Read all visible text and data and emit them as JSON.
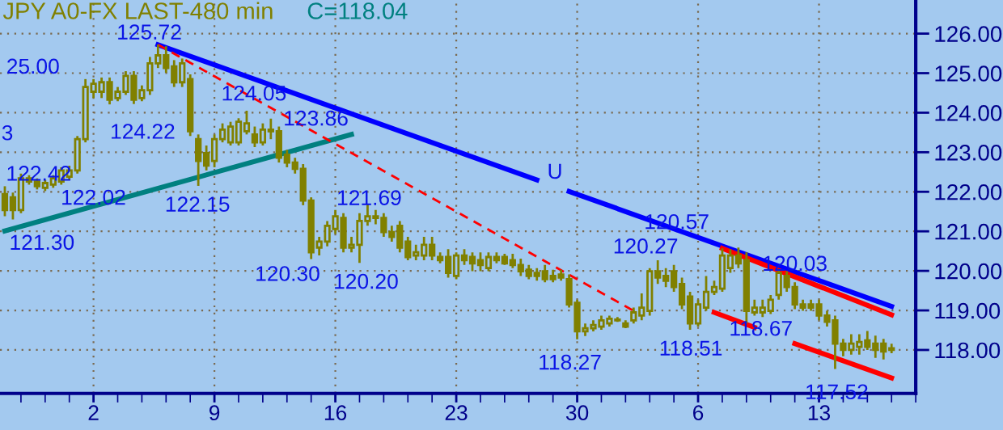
{
  "chart_data": {
    "type": "candlestick",
    "title": "JPY A0-FX LAST-480 min",
    "subtitle": "C=118.04",
    "color": "#808000",
    "categories": [
      null,
      null,
      null,
      null,
      null,
      null,
      null,
      null,
      null,
      null,
      null,
      "2",
      null,
      null,
      null,
      null,
      null,
      null,
      null,
      null,
      null,
      null,
      null,
      null,
      null,
      null,
      "9",
      null,
      null,
      null,
      null,
      null,
      null,
      null,
      null,
      null,
      null,
      null,
      null,
      null,
      null,
      "16",
      null,
      null,
      null,
      null,
      null,
      null,
      null,
      null,
      null,
      null,
      null,
      null,
      null,
      null,
      "23",
      null,
      null,
      null,
      null,
      null,
      null,
      null,
      null,
      null,
      null,
      null,
      null,
      null,
      null,
      "30",
      null,
      null,
      null,
      null,
      null,
      null,
      null,
      null,
      null,
      null,
      null,
      null,
      null,
      null,
      "6",
      null,
      null,
      null,
      null,
      null,
      null,
      null,
      null,
      null,
      null,
      null,
      null,
      null,
      null,
      "13",
      null,
      null,
      null,
      null,
      null,
      null,
      null,
      null,
      null
    ],
    "ohlc": [
      [
        121.94,
        122.14,
        121.38,
        121.54
      ],
      [
        121.86,
        121.98,
        121.3,
        121.54
      ],
      [
        121.54,
        122.46,
        121.46,
        122.34
      ],
      [
        122.34,
        122.42,
        122.18,
        122.26
      ],
      [
        122.26,
        122.34,
        122.06,
        122.14
      ],
      [
        122.1,
        122.3,
        122.02,
        122.22
      ],
      [
        122.18,
        122.42,
        122.1,
        122.34
      ],
      [
        122.26,
        122.62,
        122.18,
        122.54
      ],
      [
        122.38,
        122.66,
        122.3,
        122.54
      ],
      [
        122.54,
        123.41,
        122.46,
        123.33
      ],
      [
        123.33,
        124.85,
        123.25,
        124.65
      ],
      [
        124.53,
        124.85,
        124.37,
        124.73
      ],
      [
        124.53,
        124.89,
        124.37,
        124.77
      ],
      [
        124.77,
        124.89,
        124.21,
        124.33
      ],
      [
        124.37,
        124.65,
        124.29,
        124.53
      ],
      [
        124.53,
        125.05,
        124.45,
        124.93
      ],
      [
        124.93,
        125.05,
        124.22,
        124.33
      ],
      [
        124.37,
        124.69,
        124.29,
        124.57
      ],
      [
        124.57,
        125.41,
        124.45,
        125.25
      ],
      [
        125.25,
        125.72,
        125.13,
        125.45
      ],
      [
        125.45,
        125.68,
        125.01,
        125.13
      ],
      [
        125.17,
        125.33,
        124.65,
        124.77
      ],
      [
        124.77,
        125.37,
        124.65,
        125.25
      ],
      [
        124.85,
        124.97,
        123.41,
        123.53
      ],
      [
        123.33,
        123.45,
        122.15,
        122.78
      ],
      [
        122.98,
        123.17,
        122.54,
        122.66
      ],
      [
        122.78,
        123.45,
        122.62,
        123.33
      ],
      [
        123.33,
        123.73,
        123.25,
        123.57
      ],
      [
        123.25,
        123.77,
        123.17,
        123.65
      ],
      [
        123.25,
        123.86,
        123.17,
        123.77
      ],
      [
        123.53,
        124.05,
        123.45,
        123.73
      ],
      [
        123.45,
        123.65,
        123.13,
        123.25
      ],
      [
        123.25,
        123.73,
        123.17,
        123.57
      ],
      [
        123.53,
        123.85,
        123.33,
        123.57
      ],
      [
        123.53,
        123.65,
        122.74,
        122.86
      ],
      [
        122.94,
        123.06,
        122.62,
        122.74
      ],
      [
        122.74,
        122.86,
        122.46,
        122.58
      ],
      [
        122.58,
        122.7,
        121.66,
        121.78
      ],
      [
        121.78,
        121.86,
        120.3,
        120.47
      ],
      [
        120.59,
        120.86,
        120.39,
        120.74
      ],
      [
        120.74,
        121.26,
        120.62,
        121.14
      ],
      [
        121.06,
        121.54,
        120.94,
        121.38
      ],
      [
        121.34,
        121.46,
        120.47,
        120.59
      ],
      [
        120.59,
        120.86,
        120.47,
        120.66
      ],
      [
        120.66,
        121.46,
        120.2,
        121.26
      ],
      [
        121.26,
        121.69,
        121.14,
        121.38
      ],
      [
        121.38,
        121.54,
        121.18,
        121.34
      ],
      [
        121.34,
        121.46,
        120.86,
        120.98
      ],
      [
        120.98,
        121.14,
        120.74,
        120.86
      ],
      [
        121.14,
        121.26,
        120.47,
        120.59
      ],
      [
        120.74,
        120.86,
        120.27,
        120.35
      ],
      [
        120.39,
        120.66,
        120.27,
        120.47
      ],
      [
        120.39,
        120.86,
        120.27,
        120.66
      ],
      [
        120.66,
        120.86,
        120.27,
        120.39
      ],
      [
        120.35,
        120.47,
        120.19,
        120.27
      ],
      [
        120.35,
        120.55,
        119.83,
        119.95
      ],
      [
        119.87,
        120.47,
        119.79,
        120.39
      ],
      [
        120.39,
        120.55,
        120.15,
        120.27
      ],
      [
        120.35,
        120.47,
        119.99,
        120.19
      ],
      [
        120.27,
        120.47,
        119.99,
        120.15
      ],
      [
        120.07,
        120.47,
        119.99,
        120.35
      ],
      [
        120.35,
        120.47,
        120.19,
        120.27
      ],
      [
        120.35,
        120.43,
        120.15,
        120.19
      ],
      [
        120.27,
        120.43,
        120.07,
        120.15
      ],
      [
        120.15,
        120.31,
        119.87,
        119.99
      ],
      [
        120.03,
        120.15,
        119.79,
        119.87
      ],
      [
        119.95,
        120.07,
        119.75,
        119.87
      ],
      [
        119.99,
        120.15,
        119.71,
        119.79
      ],
      [
        119.87,
        120.03,
        119.71,
        119.79
      ],
      [
        119.91,
        120.03,
        119.75,
        119.83
      ],
      [
        119.79,
        119.91,
        119.07,
        119.15
      ],
      [
        119.19,
        119.27,
        118.27,
        118.47
      ],
      [
        118.47,
        118.67,
        118.35,
        118.55
      ],
      [
        118.55,
        118.75,
        118.47,
        118.63
      ],
      [
        118.59,
        118.87,
        118.51,
        118.75
      ],
      [
        118.67,
        118.87,
        118.59,
        118.79
      ],
      [
        118.75,
        118.83,
        118.71,
        118.75
      ],
      [
        118.67,
        118.75,
        118.55,
        118.59
      ],
      [
        118.75,
        119.07,
        118.67,
        118.95
      ],
      [
        118.87,
        119.43,
        118.75,
        119.07
      ],
      [
        118.99,
        120.07,
        118.87,
        119.99
      ],
      [
        119.99,
        120.27,
        119.67,
        119.83
      ],
      [
        119.87,
        120.07,
        119.59,
        119.75
      ],
      [
        119.99,
        120.15,
        119.47,
        119.59
      ],
      [
        119.67,
        119.83,
        119.03,
        119.15
      ],
      [
        119.35,
        119.47,
        118.51,
        118.67
      ],
      [
        118.67,
        119.27,
        118.59,
        119.15
      ],
      [
        119.07,
        119.87,
        118.99,
        119.47
      ],
      [
        119.47,
        119.75,
        119.39,
        119.59
      ],
      [
        119.55,
        120.57,
        119.47,
        120.39
      ],
      [
        120.07,
        120.55,
        119.95,
        120.39
      ],
      [
        120.39,
        120.59,
        120.07,
        120.19
      ],
      [
        120.27,
        120.47,
        118.67,
        118.99
      ],
      [
        118.95,
        119.27,
        118.87,
        119.07
      ],
      [
        118.95,
        119.27,
        118.83,
        119.07
      ],
      [
        118.99,
        119.39,
        118.91,
        119.27
      ],
      [
        119.39,
        120.03,
        119.27,
        119.95
      ],
      [
        119.87,
        119.99,
        119.47,
        119.59
      ],
      [
        119.59,
        119.71,
        119.03,
        119.15
      ],
      [
        119.15,
        119.27,
        118.99,
        119.07
      ],
      [
        119.15,
        119.27,
        118.99,
        119.07
      ],
      [
        119.15,
        119.27,
        118.75,
        118.87
      ],
      [
        118.87,
        118.99,
        118.59,
        118.71
      ],
      [
        118.75,
        118.87,
        117.52,
        118.16
      ],
      [
        118.16,
        118.28,
        117.84,
        118.0
      ],
      [
        118.0,
        118.4,
        117.88,
        118.16
      ],
      [
        118.08,
        118.4,
        117.88,
        118.2
      ],
      [
        118.24,
        118.48,
        118.0,
        118.08
      ],
      [
        118.16,
        118.36,
        117.8,
        118.0
      ],
      [
        118.16,
        118.28,
        117.76,
        117.96
      ],
      [
        118.0,
        118.16,
        117.92,
        118.04
      ]
    ],
    "series": [
      {
        "type": "line",
        "color": "#0000ff",
        "line_style": "solid",
        "values": [
          null,
          null,
          null,
          null,
          null,
          null,
          null,
          null,
          null,
          null,
          null,
          null,
          null,
          null,
          null,
          null,
          null,
          null,
          null,
          125.72,
          null,
          null,
          null,
          null,
          null,
          null,
          null,
          null,
          null,
          null,
          null,
          null,
          null,
          null,
          null,
          null,
          null,
          null,
          null,
          null,
          null,
          null,
          null,
          null,
          null,
          null,
          null,
          null,
          null,
          null,
          null,
          null,
          null,
          null,
          null,
          null,
          null,
          null,
          null,
          null,
          null,
          null,
          null,
          null,
          null,
          null,
          122.3,
          null,
          null,
          null,
          null,
          null,
          null,
          null,
          null,
          null,
          null,
          null,
          null,
          null,
          null,
          null,
          null,
          null,
          null,
          null,
          null,
          null,
          null,
          null,
          null,
          null,
          null,
          null,
          null,
          null,
          null,
          null,
          null,
          null,
          null,
          null,
          null,
          null,
          null,
          null,
          null,
          null,
          null,
          null,
          null
        ]
      },
      {
        "type": "line",
        "color": "#0000ff",
        "line_style": "solid",
        "values": [
          null,
          null,
          null,
          null,
          null,
          null,
          null,
          null,
          null,
          null,
          null,
          null,
          null,
          null,
          null,
          null,
          null,
          null,
          null,
          null,
          null,
          null,
          null,
          null,
          null,
          null,
          null,
          null,
          null,
          null,
          null,
          null,
          null,
          null,
          null,
          null,
          null,
          null,
          null,
          null,
          null,
          null,
          null,
          null,
          null,
          null,
          null,
          null,
          null,
          null,
          null,
          null,
          null,
          null,
          null,
          null,
          null,
          null,
          null,
          null,
          null,
          null,
          null,
          null,
          null,
          null,
          null,
          null,
          null,
          null,
          122.01,
          null,
          null,
          null,
          null,
          null,
          null,
          null,
          null,
          null,
          null,
          null,
          null,
          null,
          null,
          null,
          null,
          null,
          null,
          null,
          null,
          null,
          null,
          null,
          null,
          null,
          null,
          null,
          null,
          null,
          null,
          null,
          null,
          null,
          null,
          null,
          null,
          null,
          null,
          null,
          119.1
        ]
      },
      {
        "type": "line",
        "color": "#008080",
        "line_style": "solid",
        "values": [
          121.01,
          null,
          null,
          null,
          null,
          null,
          null,
          null,
          null,
          null,
          null,
          null,
          null,
          null,
          null,
          null,
          null,
          null,
          null,
          null,
          null,
          null,
          null,
          null,
          null,
          null,
          null,
          null,
          null,
          null,
          null,
          null,
          null,
          null,
          null,
          null,
          null,
          null,
          null,
          null,
          null,
          null,
          null,
          123.45,
          null,
          null,
          null,
          null,
          null,
          null,
          null,
          null,
          null,
          null,
          null,
          null,
          null,
          null,
          null,
          null,
          null,
          null,
          null,
          null,
          null,
          null,
          null,
          null,
          null,
          null,
          null,
          null,
          null,
          null,
          null,
          null,
          null,
          null,
          null,
          null,
          null,
          null,
          null,
          null,
          null,
          null,
          null,
          null,
          null,
          null,
          null,
          null,
          null,
          null,
          null,
          null,
          null,
          null,
          null,
          null,
          null,
          null,
          null,
          null,
          null,
          null,
          null,
          null,
          null,
          null,
          null
        ]
      },
      {
        "type": "line",
        "color": "#ff0000",
        "line_style": "dashed",
        "values": [
          null,
          null,
          null,
          null,
          null,
          null,
          null,
          null,
          null,
          null,
          null,
          null,
          null,
          null,
          null,
          null,
          null,
          null,
          null,
          125.72,
          null,
          null,
          null,
          null,
          null,
          null,
          null,
          null,
          null,
          null,
          null,
          null,
          null,
          null,
          null,
          null,
          null,
          null,
          null,
          null,
          null,
          null,
          null,
          null,
          null,
          null,
          null,
          null,
          null,
          null,
          null,
          null,
          null,
          null,
          null,
          null,
          null,
          null,
          null,
          null,
          null,
          null,
          null,
          null,
          null,
          null,
          null,
          null,
          null,
          null,
          null,
          null,
          null,
          null,
          null,
          null,
          null,
          null,
          118.99,
          null,
          null,
          null,
          null,
          null,
          null,
          null,
          null,
          null,
          null,
          null,
          null,
          null,
          null,
          null,
          null,
          null,
          null,
          null,
          null,
          null,
          null,
          null,
          null,
          null,
          null,
          null,
          null,
          null,
          null,
          null,
          null
        ]
      },
      {
        "type": "line",
        "color": "#ff0000",
        "line_style": "solid",
        "values": [
          null,
          null,
          null,
          null,
          null,
          null,
          null,
          null,
          null,
          null,
          null,
          null,
          null,
          null,
          null,
          null,
          null,
          null,
          null,
          null,
          null,
          null,
          null,
          null,
          null,
          null,
          null,
          null,
          null,
          null,
          null,
          null,
          null,
          null,
          null,
          null,
          null,
          null,
          null,
          null,
          null,
          null,
          null,
          null,
          null,
          null,
          null,
          null,
          null,
          null,
          null,
          null,
          null,
          null,
          null,
          null,
          null,
          null,
          null,
          null,
          null,
          null,
          null,
          null,
          null,
          null,
          null,
          null,
          null,
          null,
          null,
          null,
          null,
          null,
          null,
          null,
          null,
          null,
          null,
          null,
          null,
          null,
          null,
          null,
          null,
          null,
          null,
          null,
          null,
          120.57,
          null,
          null,
          null,
          null,
          null,
          null,
          null,
          null,
          null,
          null,
          null,
          null,
          null,
          null,
          null,
          null,
          null,
          null,
          null,
          null,
          118.89
        ]
      },
      {
        "type": "line",
        "color": "#ff0000",
        "line_style": "solid",
        "values": [
          null,
          null,
          null,
          null,
          null,
          null,
          null,
          null,
          null,
          null,
          null,
          null,
          null,
          null,
          null,
          null,
          null,
          null,
          null,
          null,
          null,
          null,
          null,
          null,
          null,
          null,
          null,
          null,
          null,
          null,
          null,
          null,
          null,
          null,
          null,
          null,
          null,
          null,
          null,
          null,
          null,
          null,
          null,
          null,
          null,
          null,
          null,
          null,
          null,
          null,
          null,
          null,
          null,
          null,
          null,
          null,
          null,
          null,
          null,
          null,
          null,
          null,
          null,
          null,
          null,
          null,
          null,
          null,
          null,
          null,
          null,
          null,
          null,
          null,
          null,
          null,
          null,
          null,
          null,
          null,
          null,
          null,
          null,
          null,
          null,
          null,
          null,
          null,
          118.95,
          null,
          null,
          null,
          null,
          118.57,
          null,
          null,
          null,
          null,
          null,
          null,
          null,
          null,
          null,
          null,
          null,
          null,
          null,
          null,
          null,
          null,
          null
        ]
      },
      {
        "type": "line",
        "color": "#ff0000",
        "line_style": "solid",
        "values": [
          null,
          null,
          null,
          null,
          null,
          null,
          null,
          null,
          null,
          null,
          null,
          null,
          null,
          null,
          null,
          null,
          null,
          null,
          null,
          null,
          null,
          null,
          null,
          null,
          null,
          null,
          null,
          null,
          null,
          null,
          null,
          null,
          null,
          null,
          null,
          null,
          null,
          null,
          null,
          null,
          null,
          null,
          null,
          null,
          null,
          null,
          null,
          null,
          null,
          null,
          null,
          null,
          null,
          null,
          null,
          null,
          null,
          null,
          null,
          null,
          null,
          null,
          null,
          null,
          null,
          null,
          null,
          null,
          null,
          null,
          null,
          null,
          null,
          null,
          null,
          null,
          null,
          null,
          null,
          null,
          null,
          null,
          null,
          null,
          null,
          null,
          null,
          null,
          null,
          null,
          null,
          null,
          null,
          null,
          null,
          null,
          null,
          null,
          118.16,
          null,
          null,
          null,
          null,
          null,
          null,
          null,
          null,
          null,
          null,
          null,
          117.29
        ]
      }
    ],
    "annotations": [
      "125.72",
      "25.00",
      "3",
      {
        "text": "124.05",
        "y": 124.05
      },
      {
        "text": "124.22",
        "y": 124.22
      },
      "123.86",
      {
        "text": "122.42",
        "y": 122.42
      },
      "122.02",
      {
        "text": "121.30",
        "y": 121.3
      },
      {
        "text": "122.15",
        "y": 122.15
      },
      "120.30",
      {
        "text": "121.69",
        "y": 121.69
      },
      {
        "text": "120.20",
        "y": 120.2
      },
      "U",
      {
        "text": "118.27",
        "y": 118.27
      },
      "120.27",
      {
        "text": "118.51",
        "y": 118.51
      },
      "120.57",
      {
        "text": "118.67",
        "y": 118.67
      },
      {
        "text": "120.03",
        "y": 120.03
      },
      {
        "text": "117.52",
        "y": 117.52
      }
    ],
    "ylim": [
      116.9,
      126.85
    ],
    "yticks": [
      {
        "value": 118,
        "label": "118.00"
      },
      {
        "value": 119,
        "label": "119.00"
      },
      {
        "value": 120,
        "label": "120.00"
      },
      {
        "value": 121,
        "label": "121.00"
      },
      {
        "value": 122,
        "label": "122.00"
      },
      {
        "value": 123,
        "label": "123.00"
      },
      {
        "value": 124,
        "label": "124.00"
      },
      {
        "value": 125,
        "label": "125.00"
      },
      {
        "value": 126,
        "label": "126.00"
      }
    ],
    "grid": true
  }
}
